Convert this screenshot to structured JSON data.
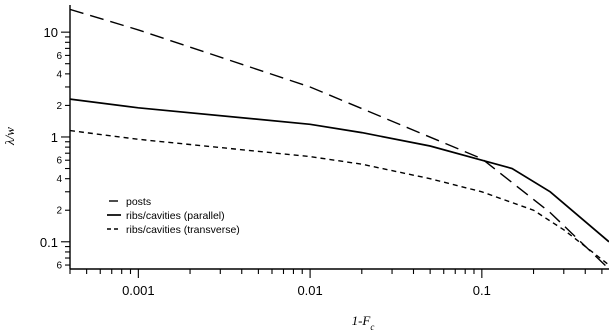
{
  "chart_data": {
    "type": "line",
    "title": "",
    "xlabel": "1-F",
    "xlabel_sub": "c",
    "ylabel": "λ/w",
    "xscale": "log",
    "yscale": "log",
    "xlim": [
      0.0004,
      0.55
    ],
    "ylim": [
      0.055,
      17
    ],
    "x_major_ticks": [
      {
        "value": 0.001,
        "label": "0.001"
      },
      {
        "value": 0.01,
        "label": "0.01"
      },
      {
        "value": 0.1,
        "label": "0.1"
      }
    ],
    "y_major_ticks": [
      {
        "value": 0.1,
        "label": "0.1"
      },
      {
        "value": 1,
        "label": "1"
      },
      {
        "value": 10,
        "label": "10"
      }
    ],
    "y_minor_labels": [
      {
        "value": 0.06,
        "label": "6"
      },
      {
        "value": 0.2,
        "label": "2"
      },
      {
        "value": 0.4,
        "label": "4"
      },
      {
        "value": 0.6,
        "label": "6"
      },
      {
        "value": 2,
        "label": "2"
      },
      {
        "value": 4,
        "label": "4"
      },
      {
        "value": 6,
        "label": "6"
      }
    ],
    "grid": false,
    "legend_position": "bottom-left",
    "series": [
      {
        "name": "posts",
        "style": "long-dash",
        "x": [
          0.0004,
          0.001,
          0.01,
          0.1,
          0.25,
          0.55
        ],
        "y": [
          16.5,
          10.5,
          3.0,
          0.62,
          0.19,
          0.055
        ]
      },
      {
        "name": "ribs/cavities (parallel)",
        "style": "solid",
        "x": [
          0.0004,
          0.001,
          0.01,
          0.02,
          0.05,
          0.1,
          0.15,
          0.25,
          0.55
        ],
        "y": [
          2.3,
          1.9,
          1.32,
          1.1,
          0.82,
          0.6,
          0.5,
          0.3,
          0.1
        ]
      },
      {
        "name": "ribs/cavities (transverse)",
        "style": "short-dash",
        "x": [
          0.0004,
          0.001,
          0.01,
          0.02,
          0.05,
          0.1,
          0.2,
          0.3,
          0.55
        ],
        "y": [
          1.15,
          0.95,
          0.65,
          0.55,
          0.4,
          0.3,
          0.2,
          0.13,
          0.06
        ]
      }
    ]
  }
}
